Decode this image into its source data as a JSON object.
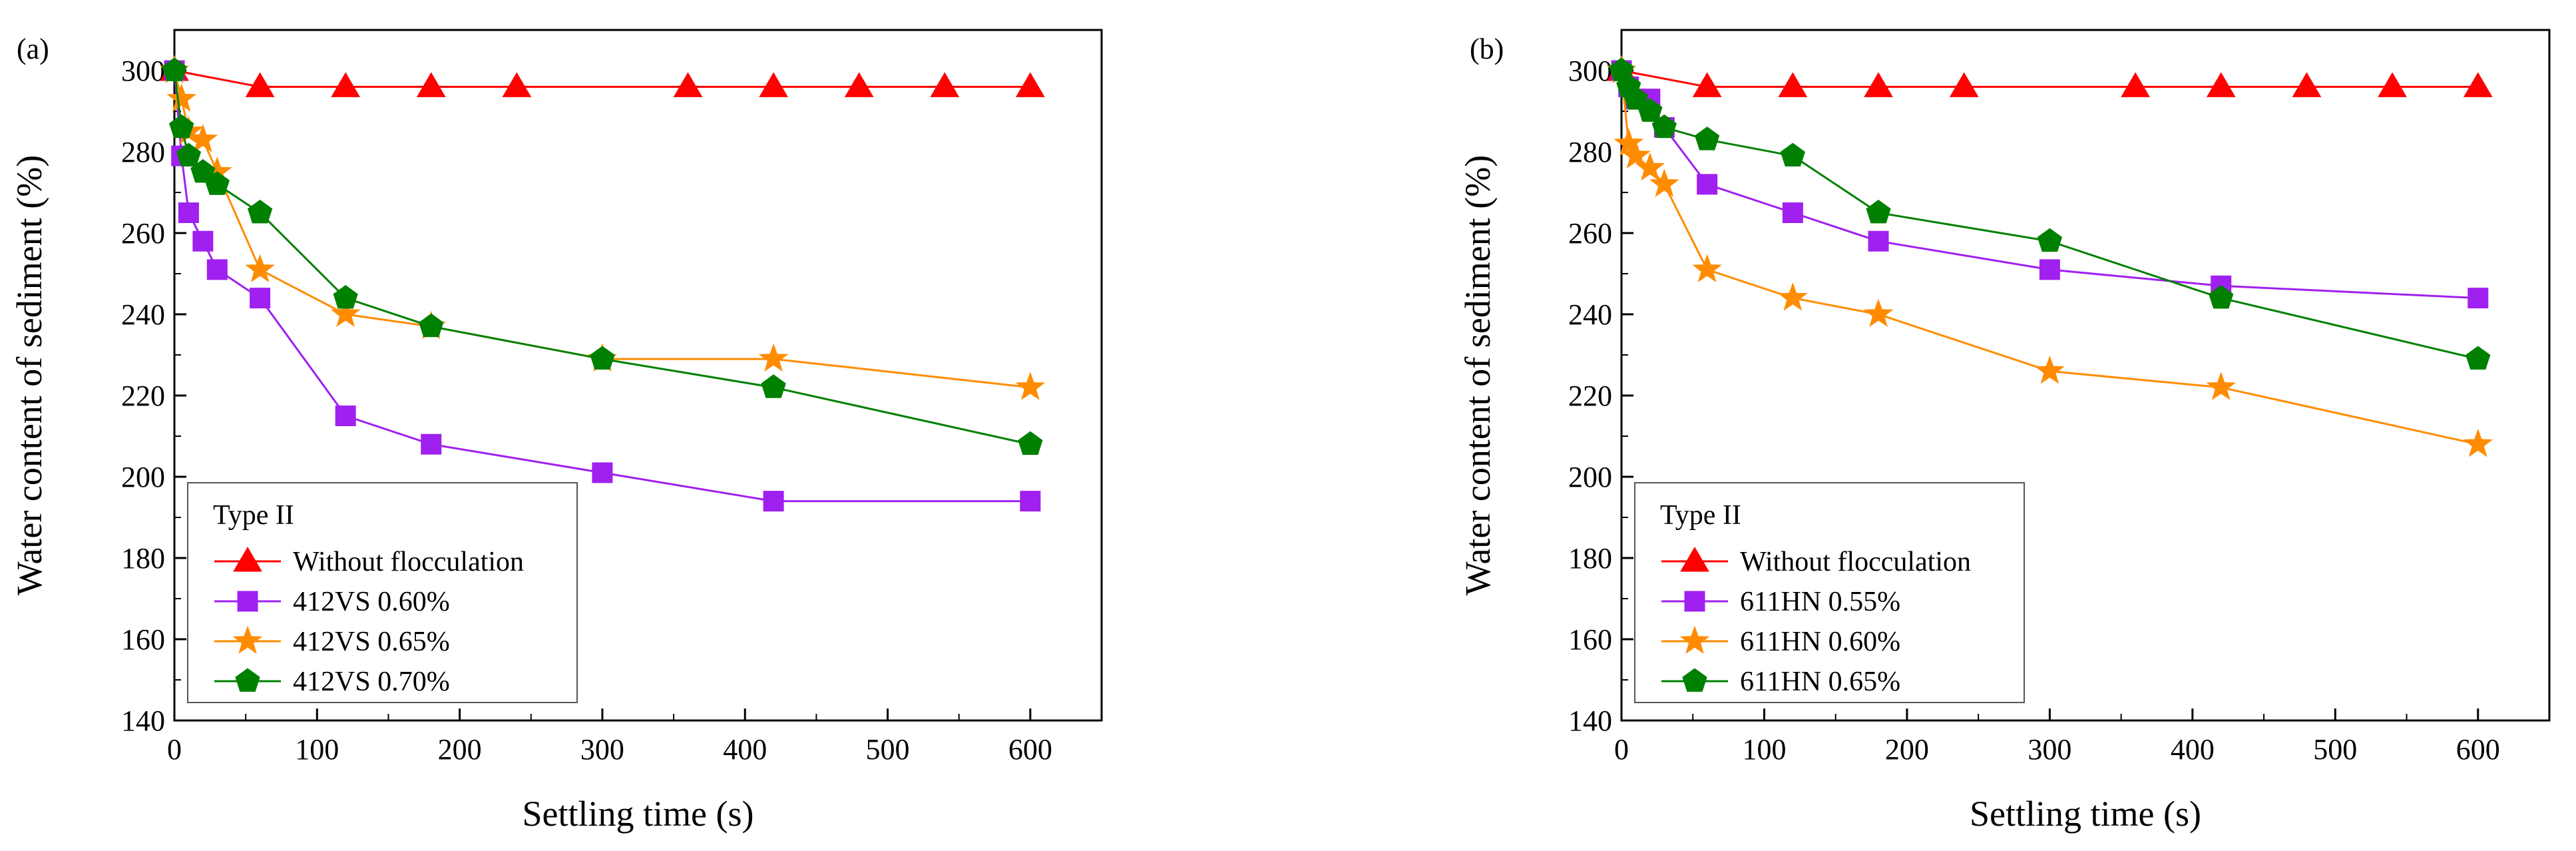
{
  "chart_data": [
    {
      "type": "line",
      "panel_label": "(a)",
      "xlabel": "Settling time (s)",
      "ylabel": "Water content of sediment (%)",
      "xlim": [
        0,
        650
      ],
      "ylim": [
        140,
        310
      ],
      "xticks": [
        0,
        100,
        200,
        300,
        400,
        500,
        600
      ],
      "yticks": [
        140,
        160,
        180,
        200,
        220,
        240,
        260,
        280,
        300
      ],
      "legend_title": "Type II",
      "legend_position": "bottom-left",
      "series": [
        {
          "name": "Without flocculation",
          "color": "#ff0000",
          "marker": "triangle",
          "x": [
            0,
            60,
            120,
            180,
            240,
            360,
            420,
            480,
            540,
            600
          ],
          "y": [
            300,
            296,
            296,
            296,
            296,
            296,
            296,
            296,
            296,
            296
          ]
        },
        {
          "name": "412VS 0.60%",
          "color": "#a020f0",
          "marker": "square",
          "x": [
            0,
            5,
            10,
            20,
            30,
            60,
            120,
            180,
            300,
            420,
            600
          ],
          "y": [
            300,
            279,
            265,
            258,
            251,
            244,
            215,
            208,
            201,
            194,
            194
          ]
        },
        {
          "name": "412VS 0.65%",
          "color": "#ff8c00",
          "marker": "star",
          "x": [
            0,
            5,
            10,
            20,
            30,
            60,
            120,
            180,
            300,
            420,
            600
          ],
          "y": [
            300,
            293,
            285,
            283,
            275,
            251,
            240,
            237,
            229,
            229,
            222
          ]
        },
        {
          "name": "412VS 0.70%",
          "color": "#008000",
          "marker": "pentagon",
          "x": [
            0,
            5,
            10,
            20,
            30,
            60,
            120,
            180,
            300,
            420,
            600
          ],
          "y": [
            300,
            286,
            279,
            275,
            272,
            265,
            244,
            237,
            229,
            222,
            208
          ]
        }
      ]
    },
    {
      "type": "line",
      "panel_label": "(b)",
      "xlabel": "Settling time (s)",
      "ylabel": "Water content of sediment (%)",
      "xlim": [
        0,
        650
      ],
      "ylim": [
        140,
        310
      ],
      "xticks": [
        0,
        100,
        200,
        300,
        400,
        500,
        600
      ],
      "yticks": [
        140,
        160,
        180,
        200,
        220,
        240,
        260,
        280,
        300
      ],
      "legend_title": "Type II",
      "legend_position": "bottom-left",
      "series": [
        {
          "name": "Without flocculation",
          "color": "#ff0000",
          "marker": "triangle",
          "x": [
            0,
            60,
            120,
            180,
            240,
            360,
            420,
            480,
            540,
            600
          ],
          "y": [
            300,
            296,
            296,
            296,
            296,
            296,
            296,
            296,
            296,
            296
          ]
        },
        {
          "name": "611HN 0.55%",
          "color": "#a020f0",
          "marker": "square",
          "x": [
            0,
            5,
            10,
            20,
            30,
            60,
            120,
            180,
            300,
            420,
            600
          ],
          "y": [
            300,
            296,
            293,
            293,
            286,
            272,
            265,
            258,
            251,
            247,
            244
          ]
        },
        {
          "name": "611HN 0.60%",
          "color": "#ff8c00",
          "marker": "star",
          "x": [
            0,
            5,
            10,
            20,
            30,
            60,
            120,
            180,
            300,
            420,
            600
          ],
          "y": [
            300,
            282,
            279,
            276,
            272,
            251,
            244,
            240,
            226,
            222,
            208
          ]
        },
        {
          "name": "611HN 0.65%",
          "color": "#008000",
          "marker": "pentagon",
          "x": [
            0,
            5,
            10,
            20,
            30,
            60,
            120,
            180,
            300,
            420,
            600
          ],
          "y": [
            300,
            296,
            293,
            290,
            286,
            283,
            279,
            265,
            258,
            244,
            229
          ]
        }
      ]
    }
  ]
}
